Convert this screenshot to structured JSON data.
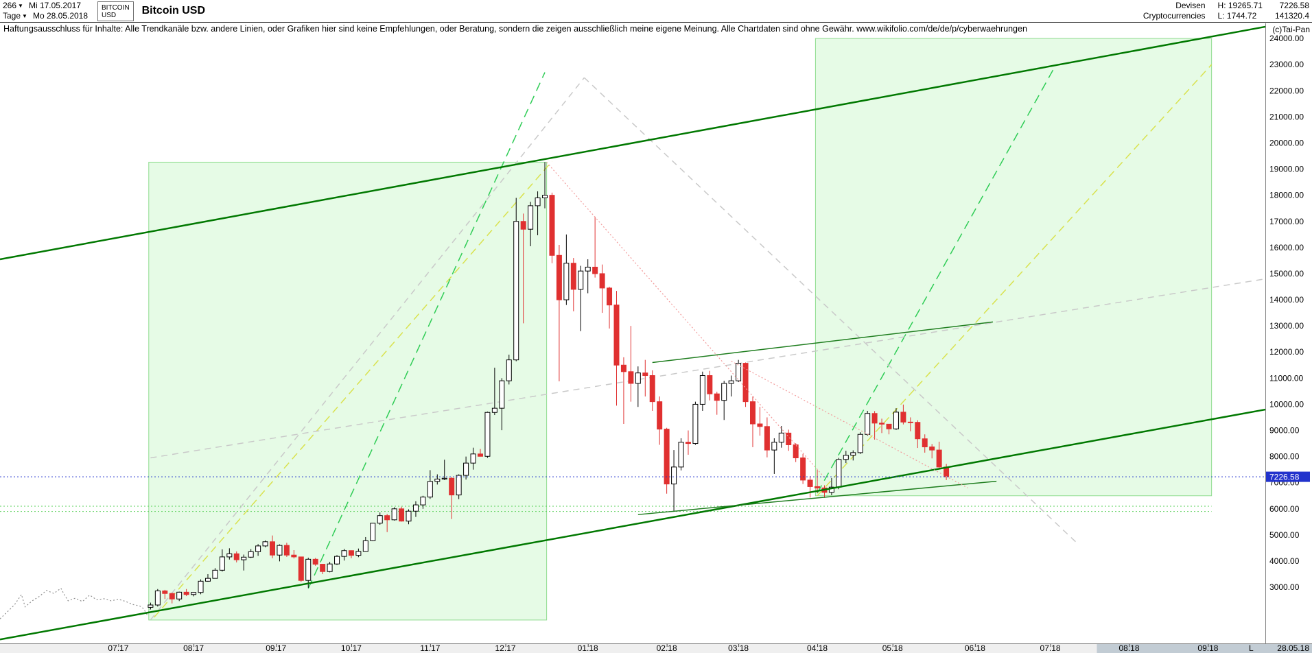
{
  "header": {
    "bars_count": "266",
    "period_label": "Tage",
    "date_from": "Mi 17.05.2017",
    "date_to": "Mo 28.05.2018",
    "symbol_box": [
      "BITCOIN",
      "USD"
    ],
    "title": "Bitcoin USD",
    "category_line1": "Devisen",
    "category_line2": "Cryptocurrencies",
    "high_label": "H: 19265.71",
    "low_label": "L: 1744.72",
    "last_price": "7226.58",
    "volume": "141320.4"
  },
  "disclaimer": {
    "text": "Haftungsausschluss für Inhalte: Alle Trendkanäle bzw. andere Linien, oder Grafiken hier sind keine Empfehlungen, oder Beratung, sondern die zeigen ausschließlich meine eigene Meinung. Alle Chartdaten sind ohne Gewähr.",
    "url": "www.wikifolio.com/de/de/p/cyberwaehrungen"
  },
  "copyright": "(c)Tai-Pan",
  "footer": {
    "last_marker": "L",
    "last_date": "28.05.18"
  },
  "chart_data": {
    "type": "candlestick",
    "title": "Bitcoin USD",
    "x_unit": "trading days since 17.05.2017",
    "x_range": [
      0,
      353
    ],
    "price_range": [
      850,
      24160
    ],
    "y_ticks": [
      3000,
      4000,
      5000,
      6000,
      7000,
      8000,
      9000,
      10000,
      11000,
      12000,
      13000,
      14000,
      15000,
      16000,
      17000,
      18000,
      19000,
      20000,
      21000,
      22000,
      23000,
      24000
    ],
    "x_axis": {
      "strip_color": "#efefef",
      "shade_from_u": 306,
      "shade_color": "#c2ccd4",
      "ticks": [
        {
          "label": "07.17",
          "u": 33
        },
        {
          "label": "08.17",
          "u": 54
        },
        {
          "label": "09.17",
          "u": 77
        },
        {
          "label": "10.17",
          "u": 98
        },
        {
          "label": "11.17",
          "u": 120
        },
        {
          "label": "12.17",
          "u": 141
        },
        {
          "label": "01.18",
          "u": 164
        },
        {
          "label": "02.18",
          "u": 186
        },
        {
          "label": "03.18",
          "u": 206
        },
        {
          "label": "04.18",
          "u": 228
        },
        {
          "label": "05.18",
          "u": 249
        },
        {
          "label": "06.18",
          "u": 272
        },
        {
          "label": "07.18",
          "u": 293
        },
        {
          "label": "08.18",
          "u": 315
        },
        {
          "label": "09.18",
          "u": 337
        }
      ]
    },
    "last_price": {
      "value": 7226.58,
      "label": "7226.58",
      "color": "#2233cc"
    },
    "colors": {
      "up_fill": "#ffffff",
      "up_stroke": "#000000",
      "down": "#e03030"
    },
    "pre_period_line": {
      "color": "#909090",
      "points": [
        [
          0,
          1790
        ],
        [
          2,
          2050
        ],
        [
          4,
          2320
        ],
        [
          6,
          2720
        ],
        [
          7,
          2250
        ],
        [
          9,
          2480
        ],
        [
          11,
          2650
        ],
        [
          13,
          2880
        ],
        [
          15,
          2760
        ],
        [
          17,
          2960
        ],
        [
          18,
          2700
        ],
        [
          19,
          2480
        ],
        [
          21,
          2580
        ],
        [
          23,
          2450
        ],
        [
          25,
          2700
        ],
        [
          27,
          2520
        ],
        [
          29,
          2560
        ],
        [
          31,
          2480
        ],
        [
          33,
          2540
        ],
        [
          35,
          2460
        ],
        [
          37,
          2340
        ],
        [
          39,
          2280
        ],
        [
          40,
          2180
        ],
        [
          41,
          1960
        ],
        [
          42,
          2180
        ]
      ]
    },
    "candles": {
      "u_start": 42,
      "u_step": 2,
      "ohlc": [
        [
          2230,
          2410,
          2150,
          2320
        ],
        [
          2320,
          2930,
          2260,
          2860
        ],
        [
          2860,
          2900,
          2550,
          2760
        ],
        [
          2760,
          2790,
          2380,
          2550
        ],
        [
          2550,
          2830,
          2470,
          2810
        ],
        [
          2810,
          2930,
          2660,
          2720
        ],
        [
          2720,
          2810,
          2650,
          2800
        ],
        [
          2800,
          3300,
          2730,
          3230
        ],
        [
          3230,
          3500,
          3210,
          3340
        ],
        [
          3340,
          3730,
          3330,
          3650
        ],
        [
          3650,
          4450,
          3600,
          4160
        ],
        [
          4160,
          4490,
          4060,
          4280
        ],
        [
          4280,
          4370,
          3950,
          4050
        ],
        [
          4050,
          4250,
          3640,
          4150
        ],
        [
          4150,
          4460,
          4120,
          4360
        ],
        [
          4360,
          4650,
          4200,
          4580
        ],
        [
          4580,
          4790,
          4530,
          4740
        ],
        [
          4740,
          4980,
          4110,
          4230
        ],
        [
          4230,
          4640,
          3990,
          4600
        ],
        [
          4600,
          4700,
          4160,
          4230
        ],
        [
          4230,
          4420,
          4100,
          4160
        ],
        [
          4160,
          4170,
          3210,
          3260
        ],
        [
          3260,
          4130,
          2980,
          4070
        ],
        [
          4070,
          4120,
          3820,
          3880
        ],
        [
          3880,
          3890,
          3500,
          3600
        ],
        [
          3600,
          3970,
          3570,
          3890
        ],
        [
          3890,
          4230,
          3850,
          4180
        ],
        [
          4180,
          4470,
          4020,
          4400
        ],
        [
          4400,
          4410,
          4110,
          4220
        ],
        [
          4220,
          4480,
          4150,
          4370
        ],
        [
          4370,
          4920,
          4360,
          4780
        ],
        [
          4780,
          5460,
          4760,
          5450
        ],
        [
          5450,
          5860,
          5390,
          5740
        ],
        [
          5740,
          5800,
          5110,
          5580
        ],
        [
          5580,
          6060,
          5550,
          6000
        ],
        [
          6000,
          6080,
          5510,
          5530
        ],
        [
          5530,
          5980,
          5410,
          5910
        ],
        [
          5910,
          6290,
          5690,
          6150
        ],
        [
          6150,
          6500,
          6000,
          6450
        ],
        [
          6450,
          7480,
          6380,
          7050
        ],
        [
          7050,
          7320,
          6930,
          7140
        ],
        [
          7140,
          7880,
          7100,
          7170
        ],
        [
          7170,
          7220,
          5610,
          6530
        ],
        [
          6530,
          7320,
          6370,
          7280
        ],
        [
          7280,
          8000,
          7120,
          7750
        ],
        [
          7750,
          8340,
          7500,
          8100
        ],
        [
          8100,
          8290,
          8000,
          8010
        ],
        [
          8010,
          9720,
          7950,
          9690
        ],
        [
          9690,
          11400,
          9590,
          9850
        ],
        [
          9850,
          11000,
          9010,
          10900
        ],
        [
          10900,
          11900,
          10760,
          11700
        ],
        [
          11700,
          17900,
          11650,
          17000
        ],
        [
          17000,
          17300,
          13100,
          16700
        ],
        [
          16700,
          17750,
          16050,
          17600
        ],
        [
          17600,
          18150,
          16470,
          17900
        ],
        [
          17900,
          19265.71,
          17500,
          18000
        ],
        [
          18000,
          18100,
          15400,
          15700
        ],
        [
          15700,
          16100,
          10880,
          14000
        ],
        [
          14000,
          16500,
          13800,
          15400
        ],
        [
          15400,
          15600,
          13560,
          14400
        ],
        [
          14400,
          15300,
          12800,
          15100
        ],
        [
          15100,
          15550,
          14250,
          15250
        ],
        [
          15250,
          17180,
          14850,
          15000
        ],
        [
          15000,
          15350,
          13500,
          14450
        ],
        [
          14450,
          14500,
          12900,
          13800
        ],
        [
          13800,
          14340,
          9950,
          11500
        ],
        [
          11500,
          11800,
          9250,
          11250
        ],
        [
          11250,
          13000,
          10100,
          10800
        ],
        [
          10800,
          11450,
          9900,
          11200
        ],
        [
          11200,
          11700,
          10300,
          11100
        ],
        [
          11100,
          11300,
          9750,
          10100
        ],
        [
          10100,
          10300,
          8450,
          9050
        ],
        [
          9050,
          9100,
          6580,
          6950
        ],
        [
          6950,
          8250,
          5920,
          7600
        ],
        [
          7600,
          8700,
          7470,
          8550
        ],
        [
          8550,
          9000,
          8070,
          8500
        ],
        [
          8500,
          10100,
          8450,
          10000
        ],
        [
          10000,
          11250,
          9750,
          11100
        ],
        [
          11100,
          11280,
          10150,
          10400
        ],
        [
          10400,
          10480,
          9600,
          10150
        ],
        [
          10150,
          10900,
          9400,
          10800
        ],
        [
          10800,
          11100,
          10300,
          10900
        ],
        [
          10900,
          11700,
          10850,
          11570
        ],
        [
          11570,
          11600,
          9900,
          10100
        ],
        [
          10100,
          10300,
          8360,
          9250
        ],
        [
          9250,
          9900,
          8800,
          9150
        ],
        [
          9150,
          9500,
          7970,
          8250
        ],
        [
          8250,
          8700,
          7335,
          8550
        ],
        [
          8550,
          9170,
          8340,
          8900
        ],
        [
          8900,
          9030,
          8220,
          8450
        ],
        [
          8450,
          8510,
          7790,
          7950
        ],
        [
          7950,
          8100,
          6950,
          7100
        ],
        [
          7100,
          7250,
          6430,
          6850
        ],
        [
          6850,
          7500,
          6600,
          6800
        ],
        [
          6800,
          6900,
          6420,
          6630
        ],
        [
          6630,
          7180,
          6520,
          6830
        ],
        [
          6830,
          7950,
          6750,
          7890
        ],
        [
          7890,
          8220,
          7750,
          8050
        ],
        [
          8050,
          8240,
          7850,
          8150
        ],
        [
          8150,
          8930,
          8100,
          8850
        ],
        [
          8850,
          9750,
          8800,
          9650
        ],
        [
          9650,
          9740,
          8650,
          9280
        ],
        [
          9280,
          9450,
          8900,
          9240
        ],
        [
          9240,
          9250,
          8850,
          9060
        ],
        [
          9060,
          9850,
          9020,
          9700
        ],
        [
          9700,
          9990,
          9230,
          9320
        ],
        [
          9320,
          9500,
          8970,
          9310
        ],
        [
          9310,
          9390,
          8330,
          8680
        ],
        [
          8680,
          8850,
          8150,
          8370
        ],
        [
          8370,
          8480,
          7930,
          8250
        ],
        [
          8250,
          8570,
          7550,
          7600
        ],
        [
          7600,
          7720,
          7100,
          7226.58
        ]
      ]
    },
    "regions": [
      {
        "u1": 41.5,
        "u2": 152.5,
        "p_top": 19265.71,
        "p_bottom": 1744.72,
        "fill": "#e6fbe6",
        "stroke": "#8fdc8f"
      },
      {
        "u1": 227.5,
        "u2": 338,
        "p_top": 24000,
        "p_bottom": 6500,
        "fill": "#e6fbe6",
        "stroke": "#8fdc8f"
      }
    ],
    "hlines": [
      {
        "name": "horizontal-support-6100",
        "p": 6100,
        "u1": 0,
        "u2": 338,
        "color": "#58d058",
        "width": 1,
        "dash": "2,3",
        "layer": "back"
      },
      {
        "name": "horizontal-support-5900",
        "p": 5900,
        "u1": 0,
        "u2": 338,
        "color": "#58d058",
        "width": 1,
        "dash": "2,3",
        "layer": "back"
      },
      {
        "name": "last-price-line",
        "p": 7226.58,
        "u1": 0,
        "u2": 353,
        "color": "#2233cc",
        "width": 1,
        "dash": "2,3",
        "layer": "front"
      }
    ],
    "trendlines": [
      {
        "name": "upper-channel",
        "u1": 0,
        "p1": 15550,
        "u2": 353,
        "p2": 24450,
        "color": "#007800",
        "width": 2.5,
        "dash": null,
        "layer": "front"
      },
      {
        "name": "lower-channel",
        "u1": 0,
        "p1": 1000,
        "u2": 353,
        "p2": 9800,
        "color": "#007800",
        "width": 2.5,
        "dash": null,
        "layer": "front"
      },
      {
        "name": "support-line",
        "u1": 178,
        "p1": 5780,
        "u2": 278,
        "p2": 7055,
        "color": "#1e7d1e",
        "width": 1.5,
        "dash": null,
        "layer": "front"
      },
      {
        "name": "resistance-line",
        "u1": 182,
        "p1": 11600,
        "u2": 277,
        "p2": 13150,
        "color": "#1e7d1e",
        "width": 1.5,
        "dash": null,
        "layer": "front"
      },
      {
        "name": "rally-2017",
        "u1": 43,
        "p1": 1850,
        "u2": 154,
        "p2": 19300,
        "color": "#d9e24e",
        "width": 1.5,
        "dash": "11,7",
        "layer": "back"
      },
      {
        "name": "rally-projection",
        "u1": 228,
        "p1": 6500,
        "u2": 338,
        "p2": 23000,
        "color": "#d9e24e",
        "width": 1.5,
        "dash": "11,7",
        "layer": "back"
      },
      {
        "name": "acceleration-2017",
        "u1": 86,
        "p1": 2950,
        "u2": 152,
        "p2": 22700,
        "color": "#2ecc55",
        "width": 1.5,
        "dash": "13,8",
        "layer": "back"
      },
      {
        "name": "acceleration-projection",
        "u1": 228,
        "p1": 6600,
        "u2": 294,
        "p2": 22850,
        "color": "#2ecc55",
        "width": 1.5,
        "dash": "13,8",
        "layer": "back"
      },
      {
        "name": "gray-trend-long",
        "u1": 42,
        "p1": 7950,
        "u2": 353,
        "p2": 14800,
        "color": "#c9c9c9",
        "width": 1.5,
        "dash": "9,7",
        "layer": "back"
      },
      {
        "name": "gray-steep-up",
        "u1": 42,
        "p1": 1750,
        "u2": 163,
        "p2": 22500,
        "color": "#c9c9c9",
        "width": 1.5,
        "dash": "9,7",
        "layer": "back"
      },
      {
        "name": "gray-steep-down",
        "u1": 163,
        "p1": 22500,
        "u2": 301,
        "p2": 4620,
        "color": "#c9c9c9",
        "width": 1.5,
        "dash": "9,7",
        "layer": "back"
      },
      {
        "name": "decline-from-peak",
        "u1": 152.5,
        "p1": 19265,
        "u2": 230,
        "p2": 7200,
        "color": "#f29a9a",
        "width": 1.2,
        "dash": "2,3",
        "layer": "front"
      },
      {
        "name": "decline-from-march-high",
        "u1": 204,
        "p1": 11650,
        "u2": 270,
        "p2": 6800,
        "color": "#f29a9a",
        "width": 1.2,
        "dash": "2,3",
        "layer": "front"
      }
    ]
  }
}
